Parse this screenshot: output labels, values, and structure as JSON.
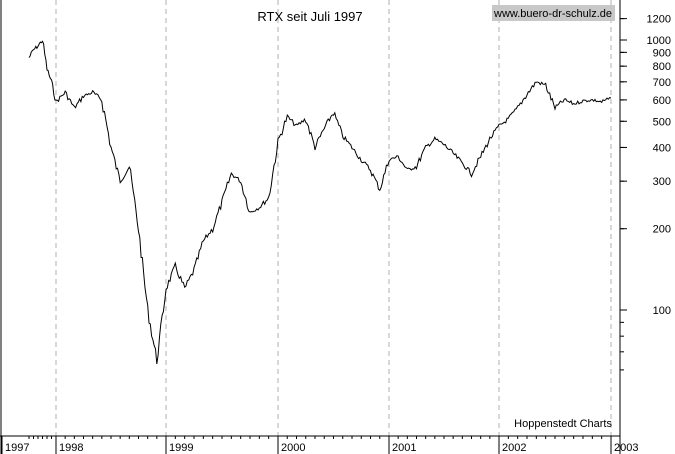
{
  "watermark": "www.buero-dr-schulz.de",
  "credit": "Hoppenstedt Charts",
  "chart_data": {
    "type": "line",
    "title": "RTX seit Juli 1997",
    "xlabel": "",
    "ylabel": "",
    "y_scale": "log",
    "grid": "vertical dashed lines at year starts",
    "ylim": [
      55,
      1500
    ],
    "xlim": [
      "1997-07",
      "2003-01"
    ],
    "x_tick_labels": [
      "1997",
      "1998",
      "1999",
      "2000",
      "2001",
      "2002",
      "2003"
    ],
    "y_ticks": [
      100,
      200,
      300,
      400,
      500,
      600,
      700,
      800,
      900,
      1000,
      1200
    ],
    "series": [
      {
        "name": "",
        "points": [
          [
            "1997-07",
            860
          ],
          [
            "1997-08",
            920
          ],
          [
            "1997-09",
            950
          ],
          [
            "1997-10",
            1000
          ],
          [
            "1997-11",
            780
          ],
          [
            "1997-12",
            700
          ],
          [
            "1998-01",
            590
          ],
          [
            "1998-02",
            640
          ],
          [
            "1998-03",
            560
          ],
          [
            "1998-04",
            620
          ],
          [
            "1998-05",
            640
          ],
          [
            "1998-06",
            600
          ],
          [
            "1998-07",
            400
          ],
          [
            "1998-08",
            300
          ],
          [
            "1998-09",
            340
          ],
          [
            "1998-10",
            200
          ],
          [
            "1998-11",
            100
          ],
          [
            "1998-12",
            65
          ],
          [
            "1999-01",
            120
          ],
          [
            "1999-02",
            145
          ],
          [
            "1999-03",
            120
          ],
          [
            "1999-04",
            140
          ],
          [
            "1999-05",
            180
          ],
          [
            "1999-06",
            200
          ],
          [
            "1999-07",
            250
          ],
          [
            "1999-08",
            320
          ],
          [
            "1999-09",
            300
          ],
          [
            "1999-10",
            230
          ],
          [
            "1999-11",
            240
          ],
          [
            "1999-12",
            260
          ],
          [
            "2000-01",
            420
          ],
          [
            "2000-02",
            520
          ],
          [
            "2000-03",
            480
          ],
          [
            "2000-04",
            510
          ],
          [
            "2000-05",
            400
          ],
          [
            "2000-06",
            470
          ],
          [
            "2000-07",
            540
          ],
          [
            "2000-08",
            440
          ],
          [
            "2000-09",
            400
          ],
          [
            "2000-10",
            360
          ],
          [
            "2000-11",
            330
          ],
          [
            "2000-12",
            280
          ],
          [
            "2001-01",
            360
          ],
          [
            "2001-02",
            370
          ],
          [
            "2001-03",
            330
          ],
          [
            "2001-04",
            340
          ],
          [
            "2001-05",
            400
          ],
          [
            "2001-06",
            430
          ],
          [
            "2001-07",
            410
          ],
          [
            "2001-08",
            380
          ],
          [
            "2001-09",
            350
          ],
          [
            "2001-10",
            320
          ],
          [
            "2001-11",
            370
          ],
          [
            "2001-12",
            430
          ],
          [
            "2002-01",
            480
          ],
          [
            "2002-02",
            510
          ],
          [
            "2002-03",
            560
          ],
          [
            "2002-04",
            630
          ],
          [
            "2002-05",
            700
          ],
          [
            "2002-06",
            680
          ],
          [
            "2002-07",
            560
          ],
          [
            "2002-08",
            600
          ],
          [
            "2002-09",
            580
          ],
          [
            "2002-10",
            595
          ],
          [
            "2002-11",
            600
          ],
          [
            "2002-12",
            590
          ],
          [
            "2003-01",
            610
          ]
        ]
      }
    ]
  }
}
